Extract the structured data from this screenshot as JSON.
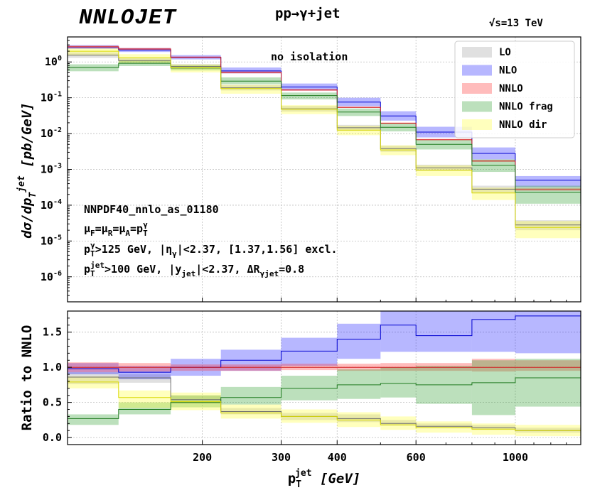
{
  "brand": "NNLOJET",
  "process": "pp→γ+jet",
  "sqrt_s": "√s=13 TeV",
  "chart_data": {
    "type": "step-band",
    "x_unit": "GeV",
    "bin_edges": [
      100,
      130,
      170,
      220,
      300,
      400,
      500,
      600,
      800,
      1000,
      1400
    ],
    "x_ticks": [
      200,
      300,
      400,
      600,
      1000
    ],
    "x_tick_labels": [
      "200",
      "300",
      "400",
      "600",
      "1000"
    ],
    "xlabel": {
      "main": "p",
      "sub": "T",
      "sup": "jet",
      "unit": "[GeV]"
    },
    "top_panel": {
      "ylabel": {
        "main": "dσ/dp",
        "sub": "T",
        "sup": "jet",
        "unit": "[pb/GeV]"
      },
      "yscale": "log",
      "ylim": [
        2e-07,
        5
      ],
      "y_ticks": [
        1,
        0.1,
        0.01,
        0.001,
        0.0001,
        1e-05,
        1e-06
      ],
      "y_tick_labels": [
        {
          "base": "10",
          "exp": "0"
        },
        {
          "base": "10",
          "exp": "-1"
        },
        {
          "base": "10",
          "exp": "-2"
        },
        {
          "base": "10",
          "exp": "-3"
        },
        {
          "base": "10",
          "exp": "-4"
        },
        {
          "base": "10",
          "exp": "-5"
        },
        {
          "base": "10",
          "exp": "-6"
        }
      ],
      "annotation_top": "no isolation",
      "annotations": [
        {
          "segs": [
            {
              "t": "NNPDF40_nnlo_as_01180"
            }
          ]
        },
        {
          "segs": [
            {
              "t": "μ"
            },
            {
              "t": "F",
              "sub": true
            },
            {
              "t": "=μ"
            },
            {
              "t": "R",
              "sub": true
            },
            {
              "t": "=μ"
            },
            {
              "t": "A",
              "sub": true
            },
            {
              "t": "=p"
            },
            {
              "t": "T",
              "sub": true
            },
            {
              "t": "γ",
              "sup": true
            }
          ]
        },
        {
          "segs": [
            {
              "t": "p"
            },
            {
              "t": "T",
              "sub": true
            },
            {
              "t": "γ",
              "sup": true
            },
            {
              "t": ">125 GeV, |η"
            },
            {
              "t": "γ",
              "sub": true
            },
            {
              "t": "|<2.37, [1.37,1.56] excl."
            }
          ]
        },
        {
          "segs": [
            {
              "t": "p"
            },
            {
              "t": "T",
              "sub": true
            },
            {
              "t": "jet",
              "sup": true
            },
            {
              "t": ">100 GeV, |y"
            },
            {
              "t": "jet",
              "sub": true
            },
            {
              "t": "|<2.37, ΔR"
            },
            {
              "t": "γjet",
              "sub": true
            },
            {
              "t": "=0.8"
            }
          ]
        }
      ],
      "series": [
        {
          "name": "LO",
          "fill": "#9e9e9e",
          "line": "#6e6e6e",
          "central": [
            1.55,
            1.1,
            0.75,
            0.19,
            0.049,
            0.0145,
            0.0038,
            0.0011,
            0.00028,
            2.8e-05
          ],
          "lo": [
            1.3,
            0.95,
            0.64,
            0.16,
            0.041,
            0.012,
            0.0031,
            0.0009,
            0.00022,
            2e-05
          ],
          "hi": [
            1.85,
            1.3,
            0.88,
            0.23,
            0.059,
            0.0175,
            0.0046,
            0.00135,
            0.00035,
            3.8e-05
          ]
        },
        {
          "name": "NLO",
          "fill": "#2020ff",
          "line": "#0000d0",
          "central": [
            2.6,
            2.15,
            1.35,
            0.56,
            0.2,
            0.076,
            0.031,
            0.011,
            0.0028,
            0.0005
          ],
          "lo": [
            2.3,
            1.9,
            1.18,
            0.48,
            0.16,
            0.058,
            0.023,
            0.0078,
            0.0019,
            0.00032
          ],
          "hi": [
            2.95,
            2.45,
            1.55,
            0.7,
            0.25,
            0.1,
            0.042,
            0.0155,
            0.0041,
            0.00065
          ]
        },
        {
          "name": "NNLO",
          "fill": "#ff3030",
          "line": "#d02020",
          "central": [
            2.65,
            2.3,
            1.35,
            0.51,
            0.165,
            0.054,
            0.0195,
            0.0067,
            0.0017,
            0.00027
          ],
          "lo": [
            2.45,
            2.15,
            1.27,
            0.48,
            0.157,
            0.052,
            0.0188,
            0.0065,
            0.00165,
            0.00026
          ],
          "hi": [
            2.85,
            2.45,
            1.43,
            0.54,
            0.175,
            0.057,
            0.0205,
            0.0071,
            0.00185,
            0.0003
          ]
        },
        {
          "name": "NNLO frag",
          "fill": "#2e9e2e",
          "line": "#1f7a1f",
          "central": [
            0.7,
            0.92,
            0.68,
            0.29,
            0.115,
            0.04,
            0.015,
            0.005,
            0.0013,
            0.00023
          ],
          "lo": [
            0.55,
            0.77,
            0.58,
            0.24,
            0.09,
            0.031,
            0.0115,
            0.0036,
            0.00085,
            0.00011
          ],
          "hi": [
            0.86,
            1.1,
            0.8,
            0.37,
            0.14,
            0.05,
            0.019,
            0.0068,
            0.0019,
            0.00035
          ]
        },
        {
          "name": "NNLO dir",
          "fill": "#ffff33",
          "line": "#d8d800",
          "central": [
            2.0,
            1.3,
            0.69,
            0.18,
            0.048,
            0.0125,
            0.0035,
            0.00095,
            0.00022,
            2.4e-05
          ],
          "lo": [
            1.5,
            0.95,
            0.51,
            0.13,
            0.035,
            0.009,
            0.0025,
            0.00065,
            0.00014,
            1.2e-05
          ],
          "hi": [
            2.4,
            1.65,
            0.85,
            0.23,
            0.062,
            0.0165,
            0.0047,
            0.0013,
            0.00031,
            3.6e-05
          ]
        }
      ]
    },
    "bottom_panel": {
      "ylabel": "Ratio to NNLO",
      "ylim": [
        -0.1,
        1.8
      ],
      "y_ticks": [
        0.0,
        0.5,
        1.0,
        1.5
      ],
      "y_tick_labels": [
        "0.0",
        "0.5",
        "1.0",
        "1.5"
      ],
      "series": [
        {
          "name": "LO",
          "fill": "#9e9e9e",
          "line": "#6e6e6e",
          "central": [
            0.86,
            0.85,
            0.54,
            0.37,
            0.3,
            0.27,
            0.2,
            0.16,
            0.14,
            0.1
          ],
          "lo": [
            0.76,
            0.78,
            0.48,
            0.33,
            0.25,
            0.22,
            0.17,
            0.14,
            0.11,
            0.07
          ],
          "hi": [
            0.93,
            0.9,
            0.6,
            0.42,
            0.35,
            0.33,
            0.25,
            0.2,
            0.18,
            0.14
          ]
        },
        {
          "name": "NLO",
          "fill": "#2020ff",
          "line": "#0000d0",
          "central": [
            0.98,
            0.93,
            1.0,
            1.1,
            1.23,
            1.4,
            1.6,
            1.45,
            1.68,
            1.73
          ],
          "lo": [
            0.9,
            0.83,
            0.88,
            0.95,
            1.02,
            1.12,
            1.22,
            1.22,
            1.22,
            1.2
          ],
          "hi": [
            1.06,
            1.02,
            1.12,
            1.25,
            1.42,
            1.62,
            1.8,
            1.8,
            1.8,
            1.8
          ]
        },
        {
          "name": "NNLO",
          "fill": "#ff3030",
          "line": "#d02020",
          "central": [
            1.0,
            1.0,
            1.0,
            1.0,
            1.0,
            1.0,
            1.0,
            1.0,
            1.0,
            1.0
          ],
          "lo": [
            0.93,
            0.94,
            0.95,
            0.95,
            0.96,
            0.95,
            0.95,
            0.95,
            0.94,
            0.95
          ],
          "hi": [
            1.07,
            1.06,
            1.04,
            1.04,
            1.05,
            1.05,
            1.06,
            1.06,
            1.12,
            1.1
          ]
        },
        {
          "name": "NNLO frag",
          "fill": "#2e9e2e",
          "line": "#1f7a1f",
          "central": [
            0.27,
            0.4,
            0.5,
            0.57,
            0.7,
            0.75,
            0.77,
            0.75,
            0.78,
            0.85
          ],
          "lo": [
            0.18,
            0.33,
            0.43,
            0.47,
            0.53,
            0.55,
            0.57,
            0.48,
            0.32,
            0.44
          ],
          "hi": [
            0.33,
            0.5,
            0.6,
            0.72,
            0.88,
            0.97,
            1.0,
            1.02,
            1.1,
            1.12
          ]
        },
        {
          "name": "NNLO dir",
          "fill": "#ffff33",
          "line": "#d8d800",
          "central": [
            0.79,
            0.57,
            0.51,
            0.35,
            0.3,
            0.25,
            0.18,
            0.14,
            0.12,
            0.1
          ],
          "lo": [
            0.7,
            0.42,
            0.39,
            0.27,
            0.21,
            0.15,
            0.11,
            0.07,
            0.04,
            0.02
          ],
          "hi": [
            0.87,
            0.67,
            0.64,
            0.47,
            0.4,
            0.36,
            0.3,
            0.23,
            0.2,
            0.18
          ]
        }
      ]
    },
    "legend": {
      "placement": "top-right",
      "entries": [
        "LO",
        "NLO",
        "NNLO",
        "NNLO frag",
        "NNLO dir"
      ]
    }
  }
}
